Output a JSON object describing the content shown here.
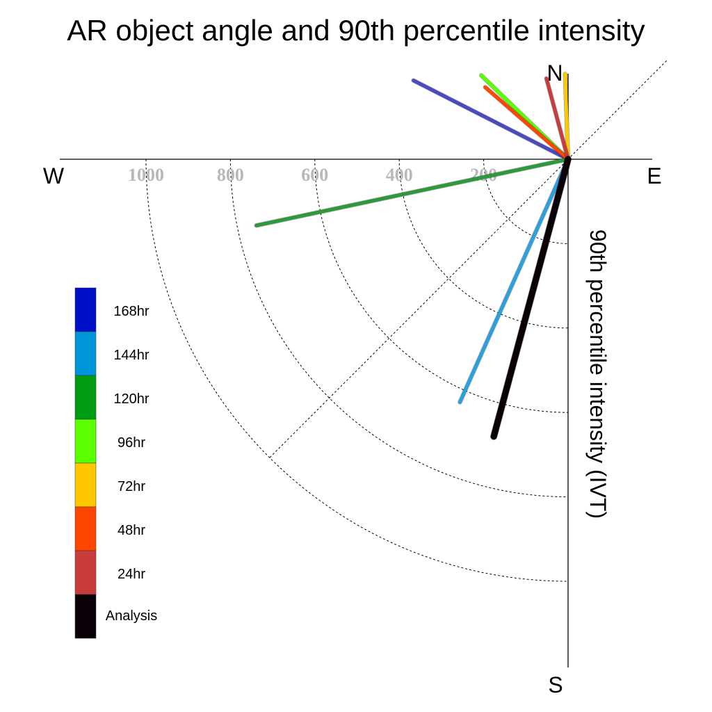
{
  "chart_data": {
    "type": "polar-vector",
    "title": "AR object angle and 90th percentile intensity",
    "radial_label": "90th percentile intensity (IVT)",
    "directions": {
      "north": "N",
      "south": "S",
      "east": "E",
      "west": "W"
    },
    "radial_ticks": [
      {
        "value": 200,
        "label": "200"
      },
      {
        "value": 400,
        "label": "400"
      },
      {
        "value": 600,
        "label": "600"
      },
      {
        "value": 800,
        "label": "800"
      },
      {
        "value": 1000,
        "label": "1000"
      }
    ],
    "radial_max": 1000,
    "grid": true,
    "legend_position": "left",
    "legend": [
      {
        "label": "168hr",
        "color": "#0010c8"
      },
      {
        "label": "144hr",
        "color": "#0096dc"
      },
      {
        "label": "120hr",
        "color": "#009c14"
      },
      {
        "label": "96hr",
        "color": "#5aff00"
      },
      {
        "label": "72hr",
        "color": "#ffc800"
      },
      {
        "label": "48hr",
        "color": "#ff4600"
      },
      {
        "label": "24hr",
        "color": "#c83c3c"
      },
      {
        "label": "Analysis",
        "color": "#0a0008"
      }
    ],
    "series": [
      {
        "name": "168hr",
        "angle_deg": 297,
        "intensity": 411,
        "color": "#4a4ac0"
      },
      {
        "name": "144hr",
        "angle_deg": 204,
        "intensity": 630,
        "color": "#2aa0dc"
      },
      {
        "name": "120hr",
        "angle_deg": 258,
        "intensity": 755,
        "color": "#2c9a3c"
      },
      {
        "name": "96hr",
        "angle_deg": 314,
        "intensity": 286,
        "color": "#5aff00"
      },
      {
        "name": "72hr",
        "angle_deg": 358,
        "intensity": 202,
        "color": "#ffc800"
      },
      {
        "name": "48hr",
        "angle_deg": 311,
        "intensity": 260,
        "color": "#ff4600"
      },
      {
        "name": "24hr",
        "angle_deg": 345,
        "intensity": 198,
        "color": "#c83c3c"
      },
      {
        "name": "Analysis",
        "angle_deg": 195,
        "intensity": 680,
        "color": "#0a0008"
      }
    ]
  }
}
